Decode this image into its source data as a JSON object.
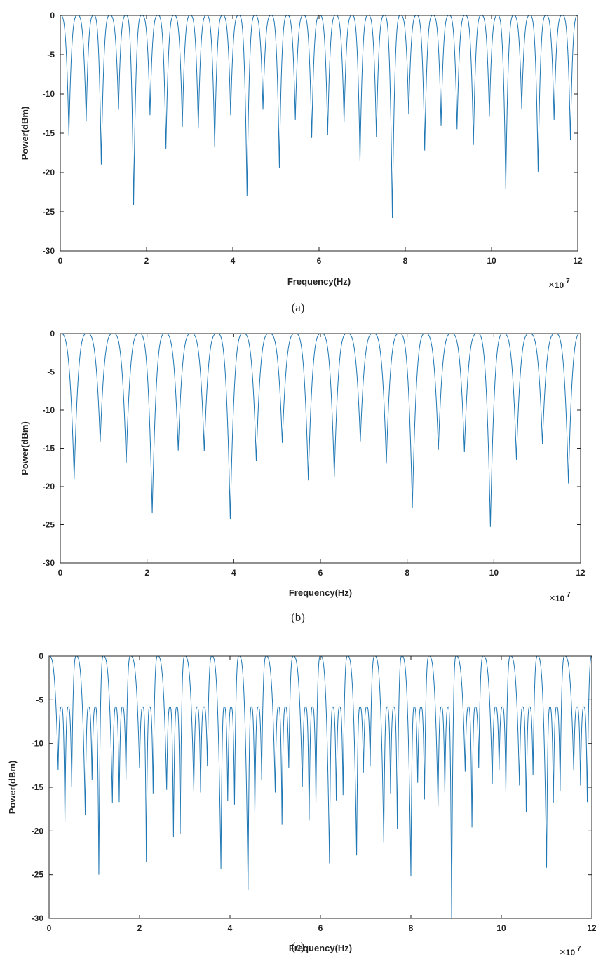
{
  "chart_data": [
    {
      "id": "a",
      "type": "line",
      "caption": "(a)",
      "xlabel": "Frequency(Hz)",
      "ylabel": "Power(dBm)",
      "x_exponent_label": "10",
      "x_exponent_power": "7",
      "xlim": [
        0,
        12
      ],
      "ylim": [
        -30,
        0
      ],
      "x_ticks": [
        "0",
        "2",
        "4",
        "6",
        "8",
        "10",
        "12"
      ],
      "y_ticks": [
        "0",
        "-5",
        "-10",
        "-15",
        "-20",
        "-25",
        "-30"
      ],
      "grid": false,
      "series": [
        {
          "peak_db": 0,
          "nulls_x": [
            0.2,
            0.6,
            0.95,
            1.35,
            1.7,
            2.08,
            2.45,
            2.83,
            3.2,
            3.58,
            3.95,
            4.33,
            4.7,
            5.08,
            5.45,
            5.83,
            6.2,
            6.58,
            6.95,
            7.33,
            7.7,
            8.08,
            8.45,
            8.83,
            9.2,
            9.58,
            9.95,
            10.33,
            10.7,
            11.08,
            11.45,
            11.83
          ],
          "nulls_db": [
            -15.3,
            -13.5,
            -19,
            -12,
            -24.2,
            -12.7,
            -17,
            -14.2,
            -14.4,
            -16.8,
            -12.7,
            -23,
            -12,
            -19.4,
            -13.3,
            -15.6,
            -15.2,
            -13.6,
            -18.6,
            -15.5,
            -25.8,
            -12.6,
            -17.2,
            -14.1,
            -14.5,
            -16.5,
            -12.9,
            -22.1,
            -11.9,
            -19.9,
            -13.3,
            -15.8
          ]
        }
      ]
    },
    {
      "id": "b",
      "type": "line",
      "caption": "(b)",
      "xlabel": "Frequency(Hz)",
      "ylabel": "Power(dBm)",
      "x_exponent_label": "10",
      "x_exponent_power": "7",
      "xlim": [
        0,
        12
      ],
      "ylim": [
        -30,
        0
      ],
      "x_ticks": [
        "0",
        "2",
        "4",
        "6",
        "8",
        "10",
        "12"
      ],
      "y_ticks": [
        "0",
        "-5",
        "-10",
        "-15",
        "-20",
        "-25",
        "-30"
      ],
      "grid": false,
      "series": [
        {
          "peak_db": 0,
          "nulls_x": [
            0.32,
            0.92,
            1.52,
            2.12,
            2.72,
            3.32,
            3.92,
            4.52,
            5.12,
            5.72,
            6.32,
            6.92,
            7.52,
            8.12,
            8.72,
            9.32,
            9.92,
            10.52,
            11.12,
            11.72
          ],
          "nulls_db": [
            -19,
            -14.2,
            -16.9,
            -23.5,
            -15.3,
            -15.4,
            -24.3,
            -16.7,
            -14.3,
            -19.2,
            -18.7,
            -14.1,
            -17,
            -22.8,
            -15.2,
            -15.5,
            -25.3,
            -16.5,
            -14.4,
            -19.6
          ]
        }
      ]
    },
    {
      "id": "c",
      "type": "line",
      "caption": "(c)",
      "xlabel": "Frequency(Hz)",
      "ylabel": "Power(dBm)",
      "x_exponent_label": "10",
      "x_exponent_power": "7",
      "xlim": [
        0,
        12
      ],
      "ylim": [
        -30,
        0
      ],
      "x_ticks": [
        "0",
        "2",
        "4",
        "6",
        "8",
        "10",
        "12"
      ],
      "y_ticks": [
        "0",
        "-5",
        "-10",
        "-15",
        "-20",
        "-25",
        "-30"
      ],
      "grid": false,
      "series": [
        {
          "main_lobe_peaks_x": [
            0,
            0.6,
            1.2,
            1.8,
            2.4,
            3.0,
            3.6,
            4.2,
            4.8,
            5.4,
            6.0,
            6.6,
            7.2,
            7.8,
            8.4,
            9.0,
            9.6,
            10.2,
            10.8,
            11.4,
            12.0
          ],
          "main_lobe_peak_db": 0,
          "side_lobe_peak_db": -5.8,
          "nulls_x": [
            0.2,
            0.35,
            0.5,
            0.8,
            0.95,
            1.1,
            1.4,
            1.55,
            1.7,
            2.0,
            2.15,
            2.3,
            2.6,
            2.75,
            2.9,
            3.2,
            3.35,
            3.5,
            3.8,
            3.95,
            4.1,
            4.4,
            4.55,
            4.7,
            5.0,
            5.15,
            5.3,
            5.6,
            5.75,
            5.9,
            6.2,
            6.35,
            6.5,
            6.8,
            6.95,
            7.1,
            7.4,
            7.55,
            7.7,
            8.0,
            8.15,
            8.3,
            8.6,
            8.75,
            8.9,
            9.2,
            9.35,
            9.5,
            9.8,
            9.95,
            10.1,
            10.4,
            10.55,
            10.7,
            11.0,
            11.15,
            11.3,
            11.6,
            11.75,
            11.9
          ],
          "nulls_db": [
            -13,
            -19,
            -15,
            -18.2,
            -14.2,
            -25,
            -16.8,
            -16.7,
            -14.1,
            -12.8,
            -23.5,
            -15.7,
            -15.3,
            -20.7,
            -20.3,
            -15.5,
            -15.6,
            -12.6,
            -24.3,
            -16.6,
            -17,
            -26.7,
            -18,
            -14.2,
            -15.6,
            -19.3,
            -12.8,
            -15,
            -18.8,
            -16.8,
            -23.7,
            -16.5,
            -15.9,
            -22.8,
            -13.3,
            -12.6,
            -21.3,
            -15.7,
            -19.8,
            -25.2,
            -14.5,
            -16.4,
            -17.2,
            -15.6,
            -30,
            -13.2,
            -19.6,
            -12.8,
            -14.6,
            -13,
            -15.6,
            -14.8,
            -17.9,
            -13.6,
            -24.2,
            -16.8,
            -15.4,
            -13.1,
            -14.8,
            -16.7
          ]
        }
      ]
    }
  ]
}
